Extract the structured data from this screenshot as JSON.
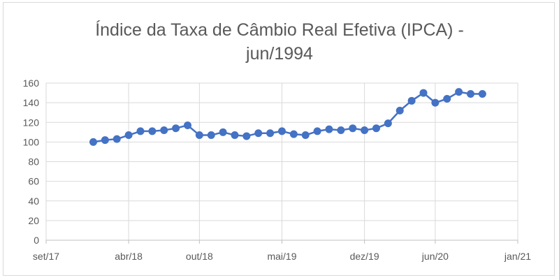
{
  "chart_data": {
    "type": "line",
    "title_lines": [
      "Índice da Taxa de Câmbio Real Efetiva (IPCA) -",
      "jun/1994"
    ],
    "xlabel": "",
    "ylabel": "",
    "y_ticks": [
      0,
      20,
      40,
      60,
      80,
      100,
      120,
      140,
      160
    ],
    "ylim": [
      0,
      160
    ],
    "x_ticks": [
      "set/17",
      "abr/18",
      "out/18",
      "mai/19",
      "dez/19",
      "jun/20",
      "jan/21"
    ],
    "x_tick_dates": [
      "2017-09",
      "2018-04",
      "2018-10",
      "2019-05",
      "2019-12",
      "2020-06",
      "2021-01"
    ],
    "xlim": [
      "2017-09",
      "2021-01"
    ],
    "grid": true,
    "legend": "none",
    "series": [
      {
        "color": "#4472c4",
        "x": [
          "2018-01",
          "2018-02",
          "2018-03",
          "2018-04",
          "2018-05",
          "2018-06",
          "2018-07",
          "2018-08",
          "2018-09",
          "2018-10",
          "2018-11",
          "2018-12",
          "2019-01",
          "2019-02",
          "2019-03",
          "2019-04",
          "2019-05",
          "2019-06",
          "2019-07",
          "2019-08",
          "2019-09",
          "2019-10",
          "2019-11",
          "2019-12",
          "2020-01",
          "2020-02",
          "2020-03",
          "2020-04",
          "2020-05",
          "2020-06",
          "2020-07",
          "2020-08",
          "2020-09",
          "2020-10"
        ],
        "values": [
          100,
          102,
          103,
          107,
          111,
          111,
          112,
          114,
          117,
          107,
          107,
          110,
          107,
          106,
          109,
          109,
          111,
          108,
          107,
          111,
          113,
          112,
          114,
          112,
          114,
          119,
          132,
          142,
          150,
          140,
          144,
          151,
          149,
          149
        ]
      }
    ]
  }
}
